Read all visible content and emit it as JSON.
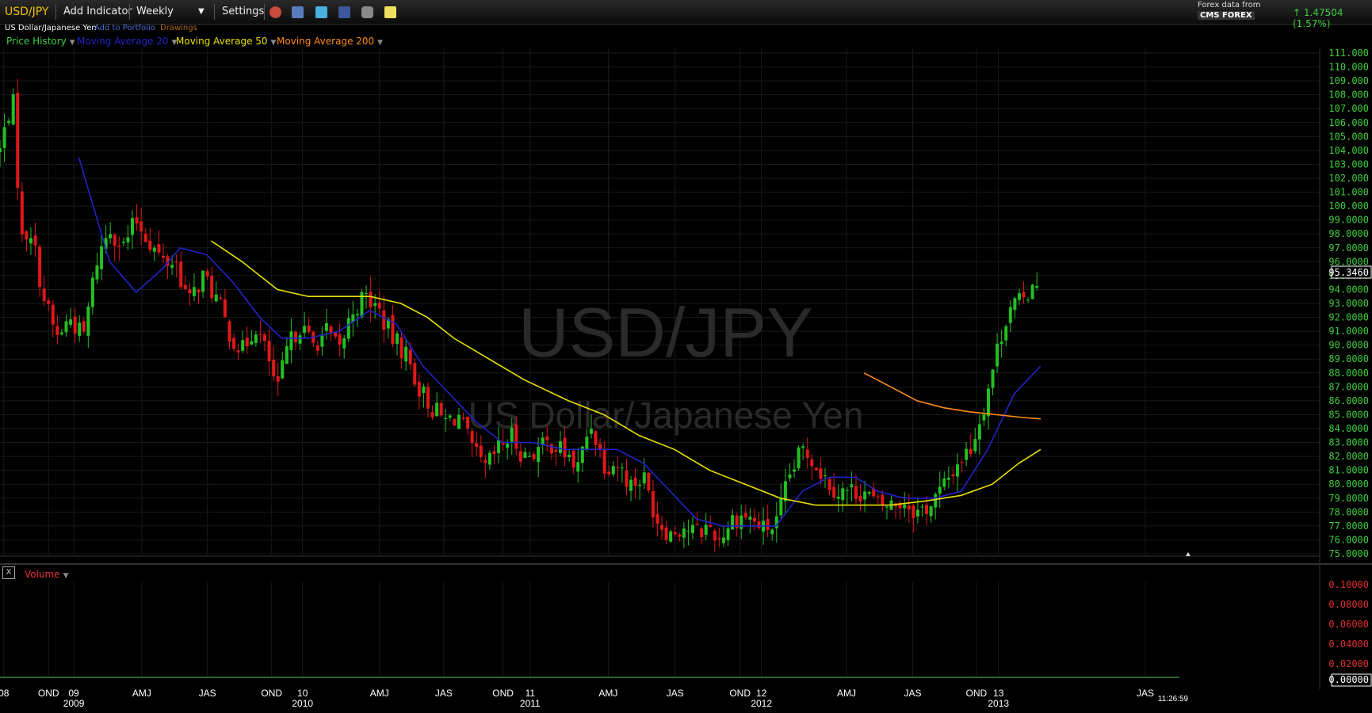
{
  "toolbar": {
    "symbol": "USD/JPY",
    "add_indicator": "Add Indicator",
    "interval": "Weekly",
    "settings": "Settings",
    "icons": [
      "clock-icon",
      "calendar-icon",
      "twitter-icon",
      "facebook-icon",
      "camera-icon",
      "note-icon"
    ],
    "forex_label": "Forex data from",
    "provider": "CMS FOREX",
    "change": "1.47504 (1.57%)",
    "change_color": "#3ecf3e"
  },
  "subbar": {
    "name": "US Dollar/Japanese Yen",
    "add_to_portfolio": "Add to Portfolio",
    "drawings": "Drawings"
  },
  "legend": {
    "price_history": "Price History",
    "ma20": "Moving Average 20",
    "ma50": "Moving Average 50",
    "ma200": "Moving Average 200",
    "colors": {
      "price": "#3ecf3e",
      "ma20": "#2323c8",
      "ma50": "#e8e000",
      "ma200": "#ff8c1a"
    }
  },
  "watermark": {
    "symbol": "USD/JPY",
    "name": "US Dollar/Japanese Yen"
  },
  "volume": {
    "label": "Volume",
    "close_label": "X",
    "ticks": [
      "0.10000",
      "0.08000",
      "0.06000",
      "0.04000",
      "0.02000"
    ],
    "last_value": "0.00000"
  },
  "time": "11:26:59",
  "chart_data": {
    "type": "candlestick",
    "title": "USD/JPY",
    "subtitle": "US Dollar/Japanese Yen",
    "interval": "weekly",
    "x_range": [
      "2008-09-15",
      "2013-10-20"
    ],
    "y_range": [
      75.0,
      111.0
    ],
    "y_ticks": [
      "111.000",
      "110.000",
      "109.000",
      "108.000",
      "107.000",
      "106.000",
      "105.000",
      "104.000",
      "103.000",
      "102.000",
      "101.000",
      "100.000",
      "99.0000",
      "98.0000",
      "97.0000",
      "96.0000",
      "95.0000",
      "94.0000",
      "93.0000",
      "92.0000",
      "91.0000",
      "90.0000",
      "89.0000",
      "88.0000",
      "87.0000",
      "86.0000",
      "85.0000",
      "84.0000",
      "83.0000",
      "82.0000",
      "81.0000",
      "80.0000",
      "79.0000",
      "78.0000",
      "77.0000",
      "76.0000",
      "75.0000"
    ],
    "last_price": "95.3460",
    "x_labels": [
      {
        "date": "2008-09-21",
        "label": "08"
      },
      {
        "date": "2008-12-01",
        "label": "OND"
      },
      {
        "date": "2009-01-10",
        "label": "09"
      },
      {
        "date": "2009-01-10",
        "label": "2009"
      },
      {
        "date": "2009-04-28",
        "label": "AMJ"
      },
      {
        "date": "2009-08-10",
        "label": "JAS"
      },
      {
        "date": "2009-11-20",
        "label": "OND"
      },
      {
        "date": "2010-01-08",
        "label": "10"
      },
      {
        "date": "2010-01-08",
        "label": "2010"
      },
      {
        "date": "2010-05-10",
        "label": "AMJ"
      },
      {
        "date": "2010-08-20",
        "label": "JAS"
      },
      {
        "date": "2010-11-22",
        "label": "OND"
      },
      {
        "date": "2011-01-04",
        "label": "11"
      },
      {
        "date": "2011-01-04",
        "label": "2011"
      },
      {
        "date": "2011-05-08",
        "label": "AMJ"
      },
      {
        "date": "2011-08-22",
        "label": "JAS"
      },
      {
        "date": "2011-12-03",
        "label": "OND"
      },
      {
        "date": "2012-01-06",
        "label": "12"
      },
      {
        "date": "2012-01-06",
        "label": "2012"
      },
      {
        "date": "2012-05-20",
        "label": "AMJ"
      },
      {
        "date": "2012-09-02",
        "label": "JAS"
      },
      {
        "date": "2012-12-12",
        "label": "OND"
      },
      {
        "date": "2013-01-16",
        "label": "13"
      },
      {
        "date": "2013-01-16",
        "label": "2013"
      },
      {
        "date": "2013-09-06",
        "label": "JAS"
      }
    ],
    "close_anchors": [
      [
        "2008-09-15",
        104.0
      ],
      [
        "2008-10-05",
        108.0
      ],
      [
        "2008-10-19",
        97.5
      ],
      [
        "2008-11-02",
        98.5
      ],
      [
        "2008-11-23",
        93.5
      ],
      [
        "2008-12-14",
        90.5
      ],
      [
        "2009-01-04",
        92.0
      ],
      [
        "2009-01-25",
        90.5
      ],
      [
        "2009-02-15",
        96.0
      ],
      [
        "2009-03-08",
        98.5
      ],
      [
        "2009-03-29",
        97.0
      ],
      [
        "2009-04-19",
        99.0
      ],
      [
        "2009-05-10",
        97.5
      ],
      [
        "2009-05-31",
        96.0
      ],
      [
        "2009-06-21",
        96.0
      ],
      [
        "2009-07-12",
        93.0
      ],
      [
        "2009-08-02",
        95.0
      ],
      [
        "2009-08-23",
        93.5
      ],
      [
        "2009-09-13",
        91.0
      ],
      [
        "2009-10-04",
        89.5
      ],
      [
        "2009-10-25",
        91.5
      ],
      [
        "2009-11-15",
        89.0
      ],
      [
        "2009-11-29",
        86.5
      ],
      [
        "2009-12-13",
        89.5
      ],
      [
        "2010-01-03",
        91.5
      ],
      [
        "2010-01-24",
        90.0
      ],
      [
        "2010-02-14",
        91.0
      ],
      [
        "2010-03-07",
        89.5
      ],
      [
        "2010-03-28",
        92.5
      ],
      [
        "2010-04-18",
        93.5
      ],
      [
        "2010-05-09",
        92.5
      ],
      [
        "2010-05-30",
        90.5
      ],
      [
        "2010-06-20",
        89.5
      ],
      [
        "2010-07-11",
        87.0
      ],
      [
        "2010-08-01",
        85.5
      ],
      [
        "2010-08-22",
        84.5
      ],
      [
        "2010-09-12",
        85.0
      ],
      [
        "2010-10-03",
        82.5
      ],
      [
        "2010-10-24",
        81.0
      ],
      [
        "2010-11-14",
        82.5
      ],
      [
        "2010-12-05",
        83.5
      ],
      [
        "2010-12-26",
        82.0
      ],
      [
        "2011-01-16",
        82.5
      ],
      [
        "2011-02-06",
        83.0
      ],
      [
        "2011-03-06",
        82.0
      ],
      [
        "2011-03-20",
        81.0
      ],
      [
        "2011-04-10",
        84.5
      ],
      [
        "2011-05-01",
        81.5
      ],
      [
        "2011-05-22",
        81.5
      ],
      [
        "2011-06-12",
        80.0
      ],
      [
        "2011-07-03",
        80.5
      ],
      [
        "2011-07-24",
        77.5
      ],
      [
        "2011-08-14",
        76.5
      ],
      [
        "2011-09-04",
        77.0
      ],
      [
        "2011-09-25",
        76.5
      ],
      [
        "2011-10-16",
        77.0
      ],
      [
        "2011-10-30",
        76.0
      ],
      [
        "2011-11-20",
        77.5
      ],
      [
        "2011-12-11",
        77.8
      ],
      [
        "2012-01-08",
        76.8
      ],
      [
        "2012-01-29",
        77.0
      ],
      [
        "2012-02-19",
        80.5
      ],
      [
        "2012-03-11",
        82.5
      ],
      [
        "2012-03-25",
        82.0
      ],
      [
        "2012-04-15",
        80.5
      ],
      [
        "2012-05-06",
        79.5
      ],
      [
        "2012-05-27",
        79.5
      ],
      [
        "2012-06-17",
        79.5
      ],
      [
        "2012-07-08",
        78.5
      ],
      [
        "2012-07-29",
        78.5
      ],
      [
        "2012-08-19",
        78.8
      ],
      [
        "2012-09-09",
        78.0
      ],
      [
        "2012-09-30",
        78.5
      ],
      [
        "2012-10-21",
        79.8
      ],
      [
        "2012-11-11",
        81.5
      ],
      [
        "2012-12-02",
        82.5
      ],
      [
        "2012-12-23",
        85.5
      ],
      [
        "2013-01-13",
        89.5
      ],
      [
        "2013-02-03",
        93.0
      ],
      [
        "2013-02-24",
        93.0
      ],
      [
        "2013-03-10",
        94.5
      ],
      [
        "2013-03-24",
        95.3
      ]
    ],
    "series": [
      {
        "name": "Moving Average 20",
        "color": "#2323c8",
        "points": [
          [
            "2009-01-18",
            103.5
          ],
          [
            "2009-03-08",
            96.0
          ],
          [
            "2009-04-19",
            93.8
          ],
          [
            "2009-05-31",
            95.5
          ],
          [
            "2009-06-28",
            97.0
          ],
          [
            "2009-08-09",
            96.5
          ],
          [
            "2009-09-20",
            94.5
          ],
          [
            "2009-11-01",
            92.0
          ],
          [
            "2009-12-06",
            90.5
          ],
          [
            "2010-01-17",
            90.5
          ],
          [
            "2010-03-07",
            91.0
          ],
          [
            "2010-04-25",
            92.5
          ],
          [
            "2010-06-06",
            91.5
          ],
          [
            "2010-07-18",
            88.5
          ],
          [
            "2010-08-29",
            86.5
          ],
          [
            "2010-10-10",
            84.5
          ],
          [
            "2010-11-21",
            83.0
          ],
          [
            "2011-01-09",
            83.0
          ],
          [
            "2011-02-27",
            82.5
          ],
          [
            "2011-04-10",
            82.5
          ],
          [
            "2011-05-22",
            82.5
          ],
          [
            "2011-07-03",
            81.5
          ],
          [
            "2011-08-14",
            79.5
          ],
          [
            "2011-09-25",
            77.5
          ],
          [
            "2011-11-06",
            77.0
          ],
          [
            "2011-12-18",
            77.0
          ],
          [
            "2012-01-29",
            77.0
          ],
          [
            "2012-03-11",
            79.5
          ],
          [
            "2012-04-22",
            80.5
          ],
          [
            "2012-06-03",
            80.5
          ],
          [
            "2012-07-08",
            79.5
          ],
          [
            "2012-08-19",
            79.0
          ],
          [
            "2012-10-07",
            79.0
          ],
          [
            "2012-11-18",
            79.5
          ],
          [
            "2012-12-30",
            82.5
          ],
          [
            "2013-02-10",
            86.5
          ],
          [
            "2013-03-24",
            88.5
          ]
        ]
      },
      {
        "name": "Moving Average 50",
        "color": "#e8e000",
        "points": [
          [
            "2009-08-16",
            97.5
          ],
          [
            "2009-10-04",
            96.0
          ],
          [
            "2009-11-29",
            94.0
          ],
          [
            "2010-01-17",
            93.5
          ],
          [
            "2010-03-07",
            93.5
          ],
          [
            "2010-04-25",
            93.5
          ],
          [
            "2010-06-13",
            93.0
          ],
          [
            "2010-07-25",
            92.0
          ],
          [
            "2010-09-05",
            90.5
          ],
          [
            "2010-10-31",
            89.0
          ],
          [
            "2010-12-26",
            87.5
          ],
          [
            "2011-03-06",
            86.0
          ],
          [
            "2011-05-01",
            85.0
          ],
          [
            "2011-06-26",
            83.5
          ],
          [
            "2011-08-21",
            82.5
          ],
          [
            "2011-10-16",
            81.0
          ],
          [
            "2011-12-11",
            80.0
          ],
          [
            "2012-02-05",
            79.0
          ],
          [
            "2012-04-01",
            78.5
          ],
          [
            "2012-06-03",
            78.5
          ],
          [
            "2012-07-29",
            78.5
          ],
          [
            "2012-09-23",
            78.8
          ],
          [
            "2012-11-18",
            79.2
          ],
          [
            "2013-01-06",
            80.0
          ],
          [
            "2013-02-17",
            81.5
          ],
          [
            "2013-03-24",
            82.5
          ]
        ]
      },
      {
        "name": "Moving Average 200",
        "color": "#ff8c1a",
        "points": [
          [
            "2012-06-17",
            88.0
          ],
          [
            "2012-07-29",
            87.0
          ],
          [
            "2012-09-09",
            86.0
          ],
          [
            "2012-10-21",
            85.5
          ],
          [
            "2012-12-02",
            85.2
          ],
          [
            "2013-01-13",
            85.0
          ],
          [
            "2013-02-24",
            84.8
          ],
          [
            "2013-03-24",
            84.7
          ]
        ]
      }
    ]
  }
}
